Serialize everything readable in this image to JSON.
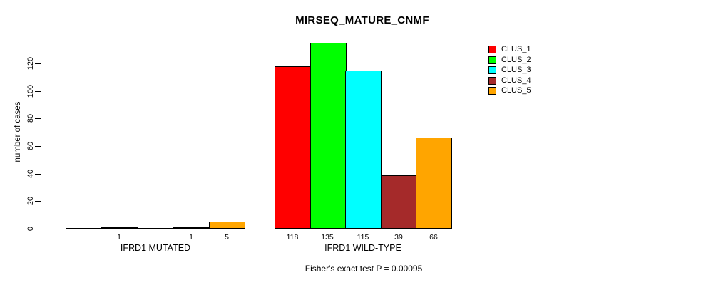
{
  "chart_data": {
    "type": "bar",
    "title": "MIRSEQ_MATURE_CNMF",
    "ylabel": "number of cases",
    "xlabel": "",
    "categories": [
      "IFRD1 MUTATED",
      "IFRD1 WILD-TYPE"
    ],
    "series": [
      {
        "name": "CLUS_1",
        "color": "#ff0000",
        "values": [
          0,
          118
        ]
      },
      {
        "name": "CLUS_2",
        "color": "#00ff00",
        "values": [
          1,
          135
        ]
      },
      {
        "name": "CLUS_3",
        "color": "#00ffff",
        "values": [
          0,
          115
        ]
      },
      {
        "name": "CLUS_4",
        "color": "#a52a2a",
        "values": [
          1,
          39
        ]
      },
      {
        "name": "CLUS_5",
        "color": "#ffa500",
        "values": [
          5,
          66
        ]
      }
    ],
    "bar_value_labels": [
      [
        "",
        "1",
        "",
        "1",
        "5"
      ],
      [
        "118",
        "135",
        "115",
        "39",
        "66"
      ]
    ],
    "yticks": [
      0,
      20,
      40,
      60,
      80,
      100,
      120
    ],
    "ylim": [
      0,
      135
    ],
    "grid": false,
    "legend_position": "top-right",
    "annotation": "Fisher's exact test P = 0.00095"
  }
}
